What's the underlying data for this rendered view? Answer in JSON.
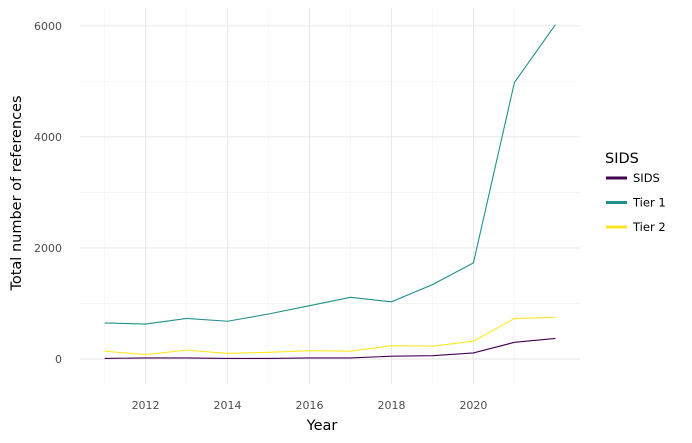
{
  "chart_data": {
    "type": "line",
    "xlabel": "Year",
    "ylabel": "Total number of references",
    "x": [
      2011,
      2012,
      2013,
      2014,
      2015,
      2016,
      2017,
      2018,
      2019,
      2020,
      2021,
      2022
    ],
    "xlim": [
      2010.4,
      2022.6
    ],
    "ylim": [
      -450,
      6320
    ],
    "x_ticks": [
      2012,
      2014,
      2016,
      2018,
      2020
    ],
    "x_tick_labels": [
      "2012",
      "2014",
      "2016",
      "2018",
      "2020"
    ],
    "y_ticks": [
      0,
      2000,
      4000,
      6000
    ],
    "y_tick_labels": [
      "0",
      "2000",
      "4000",
      "6000"
    ],
    "grid": true,
    "legend": {
      "title": "SIDS",
      "position": "right"
    },
    "series": [
      {
        "name": "SIDS",
        "color": "#440154",
        "values": [
          10,
          20,
          20,
          10,
          10,
          20,
          20,
          50,
          60,
          110,
          300,
          370
        ]
      },
      {
        "name": "Tier 1",
        "color": "#21908c",
        "values": [
          650,
          630,
          730,
          680,
          810,
          960,
          1110,
          1030,
          1340,
          1730,
          4980,
          6020
        ]
      },
      {
        "name": "Tier 2",
        "color": "#fde725",
        "values": [
          140,
          80,
          160,
          100,
          120,
          150,
          140,
          240,
          230,
          320,
          730,
          750
        ]
      }
    ]
  }
}
